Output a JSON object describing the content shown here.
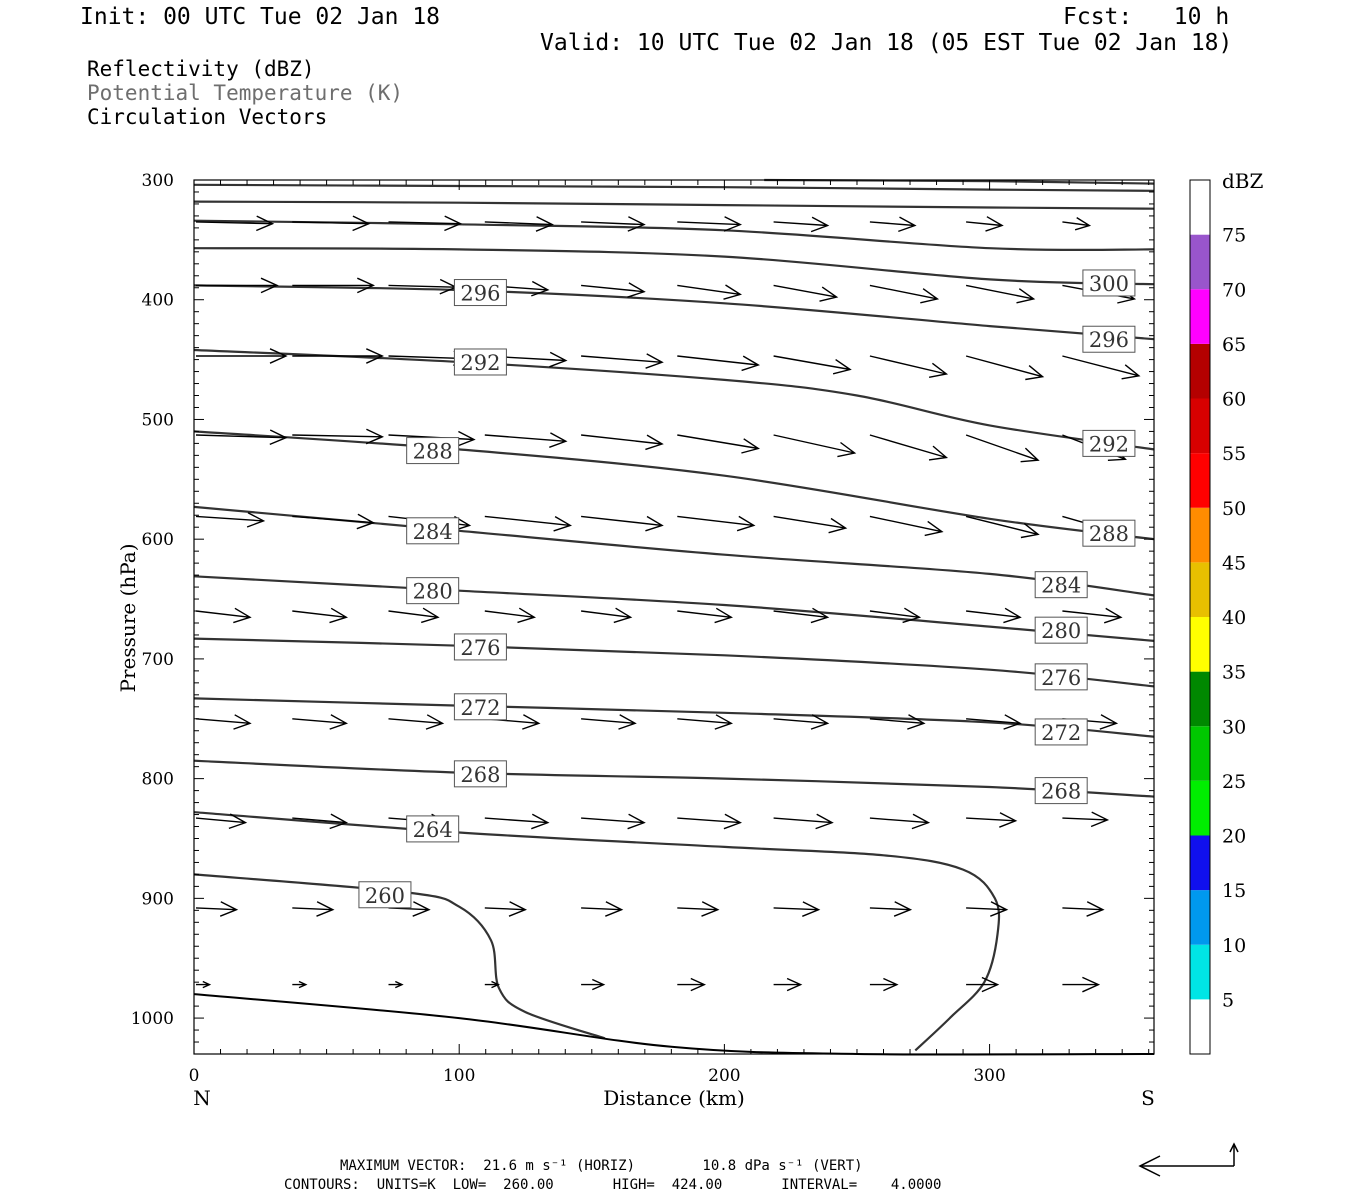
{
  "header": {
    "init": "Init: 00 UTC Tue 02 Jan 18",
    "fcst": "Fcst:   10 h",
    "valid": "Valid: 10 UTC Tue 02 Jan 18 (05 EST Tue 02 Jan 18)"
  },
  "legend": {
    "line1": "Reflectivity (dBZ)",
    "line2": "Potential Temperature (K)",
    "line3": "Circulation Vectors",
    "line2_color": "#6e6e6e"
  },
  "footer": {
    "max_vector": "MAXIMUM VECTOR:  21.6 m s⁻¹ (HORIZ)        10.8 dPa s⁻¹ (VERT)",
    "contours": "CONTOURS:  UNITS=K  LOW=  260.00       HIGH=  424.00       INTERVAL=    4.0000"
  },
  "chart_data": {
    "type": "cross-section",
    "xlabel": "Distance (km)",
    "ylabel": "Pressure (hPa)",
    "x_end_left": "N",
    "x_end_right": "S",
    "xlim": [
      0,
      362
    ],
    "ylim": [
      1030,
      300
    ],
    "xticks": [
      0,
      100,
      200,
      300
    ],
    "yticks": [
      300,
      400,
      500,
      600,
      700,
      800,
      900,
      1000
    ],
    "colorbar": {
      "title": "dBZ",
      "bounds": [
        0,
        5,
        10,
        15,
        20,
        25,
        30,
        35,
        40,
        45,
        50,
        55,
        60,
        65,
        70,
        75,
        80
      ],
      "tick_labels": [
        "5",
        "10",
        "15",
        "20",
        "25",
        "30",
        "35",
        "40",
        "45",
        "50",
        "55",
        "60",
        "65",
        "70",
        "75"
      ],
      "colors": [
        "#ffffff",
        "#00e5e5",
        "#0099ee",
        "#1010ee",
        "#00ee00",
        "#00c800",
        "#008800",
        "#ffff00",
        "#e8c000",
        "#ff8c00",
        "#ff0000",
        "#d80000",
        "#b40000",
        "#ff00ff",
        "#9955cc",
        "#ffffff"
      ]
    },
    "theta_contours": [
      {
        "value": 260,
        "label": "260",
        "points": [
          [
            0,
            880
          ],
          [
            80,
            895
          ],
          [
            100,
            907
          ],
          [
            112,
            935
          ],
          [
            115,
            975
          ],
          [
            125,
            995
          ],
          [
            155,
            1017
          ]
        ],
        "label_points": [
          [
            72,
            897
          ]
        ]
      },
      {
        "value": 264,
        "label": "264",
        "points": [
          [
            0,
            828
          ],
          [
            100,
            845
          ],
          [
            200,
            857
          ],
          [
            260,
            864
          ],
          [
            290,
            876
          ],
          [
            302,
            900
          ],
          [
            303,
            930
          ],
          [
            298,
            970
          ],
          [
            285,
            1000
          ],
          [
            272,
            1027
          ]
        ],
        "label_points": [
          [
            90,
            842
          ]
        ]
      },
      {
        "value": 268,
        "label": "268",
        "points": [
          [
            0,
            785
          ],
          [
            100,
            795
          ],
          [
            200,
            800
          ],
          [
            300,
            807
          ],
          [
            362,
            815
          ]
        ],
        "label_points": [
          [
            108,
            796
          ],
          [
            327,
            810
          ]
        ]
      },
      {
        "value": 272,
        "label": "272",
        "points": [
          [
            0,
            733
          ],
          [
            100,
            739
          ],
          [
            200,
            745
          ],
          [
            300,
            753
          ],
          [
            362,
            765
          ]
        ],
        "label_points": [
          [
            108,
            740
          ],
          [
            327,
            761
          ]
        ]
      },
      {
        "value": 276,
        "label": "276",
        "points": [
          [
            0,
            683
          ],
          [
            100,
            689
          ],
          [
            200,
            697
          ],
          [
            300,
            709
          ],
          [
            362,
            723
          ]
        ],
        "label_points": [
          [
            108,
            690
          ],
          [
            327,
            715
          ]
        ]
      },
      {
        "value": 280,
        "label": "280",
        "points": [
          [
            0,
            631
          ],
          [
            100,
            643
          ],
          [
            200,
            655
          ],
          [
            300,
            673
          ],
          [
            362,
            685
          ]
        ],
        "label_points": [
          [
            90,
            643
          ],
          [
            327,
            676
          ]
        ]
      },
      {
        "value": 284,
        "label": "284",
        "points": [
          [
            0,
            573
          ],
          [
            100,
            593
          ],
          [
            200,
            613
          ],
          [
            300,
            629
          ],
          [
            362,
            647
          ]
        ],
        "label_points": [
          [
            90,
            593
          ],
          [
            327,
            638
          ]
        ]
      },
      {
        "value": 288,
        "label": "288",
        "points": [
          [
            0,
            510
          ],
          [
            100,
            525
          ],
          [
            200,
            547
          ],
          [
            300,
            583
          ],
          [
            362,
            600
          ]
        ],
        "label_points": [
          [
            90,
            526
          ],
          [
            345,
            595
          ]
        ]
      },
      {
        "value": 292,
        "label": "292",
        "points": [
          [
            0,
            442
          ],
          [
            100,
            452
          ],
          [
            200,
            467
          ],
          [
            250,
            480
          ],
          [
            300,
            505
          ],
          [
            362,
            525
          ]
        ],
        "label_points": [
          [
            108,
            452
          ],
          [
            345,
            520
          ]
        ]
      },
      {
        "value": 296,
        "label": "296",
        "points": [
          [
            0,
            388
          ],
          [
            100,
            392
          ],
          [
            200,
            403
          ],
          [
            300,
            422
          ],
          [
            362,
            433
          ]
        ],
        "label_points": [
          [
            108,
            394
          ],
          [
            345,
            433
          ]
        ]
      },
      {
        "value": 300,
        "label": "300",
        "points": [
          [
            0,
            357
          ],
          [
            100,
            358
          ],
          [
            200,
            364
          ],
          [
            300,
            383
          ],
          [
            362,
            387
          ]
        ],
        "label_points": [
          [
            345,
            386
          ]
        ]
      },
      {
        "value": 304,
        "label": "",
        "points": [
          [
            0,
            334
          ],
          [
            100,
            337
          ],
          [
            200,
            342
          ],
          [
            300,
            357
          ],
          [
            362,
            358
          ]
        ],
        "label_points": []
      },
      {
        "value": 308,
        "label": "",
        "points": [
          [
            0,
            318
          ],
          [
            100,
            319
          ],
          [
            200,
            321
          ],
          [
            300,
            323
          ],
          [
            362,
            324
          ]
        ],
        "label_points": []
      },
      {
        "value": 312,
        "label": "",
        "points": [
          [
            0,
            304
          ],
          [
            100,
            305
          ],
          [
            200,
            306
          ],
          [
            300,
            308
          ],
          [
            362,
            309
          ]
        ],
        "label_points": []
      },
      {
        "value": 316,
        "label": "",
        "points": [
          [
            215,
            300
          ],
          [
            300,
            301
          ],
          [
            362,
            303
          ]
        ],
        "label_points": []
      }
    ],
    "ground_line": [
      [
        0,
        980
      ],
      [
        100,
        1000
      ],
      [
        180,
        1024
      ],
      [
        250,
        1030
      ],
      [
        362,
        1030
      ]
    ],
    "vector_grid": {
      "x": [
        0,
        36.3,
        72.6,
        108.9,
        145.2,
        181.5,
        217.8,
        254.1,
        290.4,
        326.7
      ],
      "rows": [
        {
          "p": 335,
          "u": [
            0.85,
            0.85,
            0.8,
            0.75,
            0.7,
            0.7,
            0.6,
            0.5,
            0.4,
            0.3
          ],
          "w": [
            0.02,
            0.02,
            0.02,
            0.03,
            0.03,
            0.03,
            0.04,
            0.04,
            0.04,
            0.04
          ]
        },
        {
          "p": 388,
          "u": [
            0.9,
            0.9,
            0.75,
            0.7,
            0.7,
            0.7,
            0.7,
            0.75,
            0.75,
            0.8
          ],
          "w": [
            0,
            0,
            0.02,
            0.05,
            0.07,
            0.1,
            0.13,
            0.15,
            0.15,
            0.15
          ]
        },
        {
          "p": 447,
          "u": [
            1,
            1,
            0.9,
            0.9,
            0.9,
            0.9,
            0.85,
            0.85,
            0.85,
            0.85
          ],
          "w": [
            0,
            0,
            0.03,
            0.05,
            0.07,
            0.1,
            0.15,
            0.2,
            0.23,
            0.22
          ]
        },
        {
          "p": 513,
          "u": [
            1,
            1,
            0.95,
            0.9,
            0.9,
            0.9,
            0.9,
            0.85,
            0.8,
            0.7
          ],
          "w": [
            0.03,
            0.02,
            0.05,
            0.07,
            0.1,
            0.15,
            0.2,
            0.25,
            0.28,
            0.27
          ]
        },
        {
          "p": 581,
          "u": [
            0.75,
            0.9,
            0.9,
            0.95,
            0.9,
            0.85,
            0.8,
            0.8,
            0.8,
            0.8
          ],
          "w": [
            0.05,
            0.07,
            0.1,
            0.1,
            0.1,
            0.1,
            0.13,
            0.17,
            0.2,
            0.23
          ]
        },
        {
          "p": 660,
          "u": [
            0.6,
            0.6,
            0.55,
            0.55,
            0.55,
            0.6,
            0.6,
            0.55,
            0.6,
            0.65
          ],
          "w": [
            0.07,
            0.07,
            0.07,
            0.07,
            0.07,
            0.07,
            0.07,
            0.07,
            0.07,
            0.07
          ]
        },
        {
          "p": 750,
          "u": [
            0.6,
            0.6,
            0.6,
            0.6,
            0.6,
            0.6,
            0.6,
            0.6,
            0.6,
            0.6
          ],
          "w": [
            0.05,
            0.05,
            0.05,
            0.05,
            0.05,
            0.05,
            0.05,
            0.05,
            0.05,
            0.05
          ]
        },
        {
          "p": 833,
          "u": [
            0.55,
            0.6,
            0.65,
            0.7,
            0.7,
            0.7,
            0.65,
            0.65,
            0.55,
            0.5
          ],
          "w": [
            0.05,
            0.05,
            0.05,
            0.05,
            0.05,
            0.05,
            0.05,
            0.05,
            0.03,
            0.02
          ]
        },
        {
          "p": 908,
          "u": [
            0.45,
            0.45,
            0.45,
            0.45,
            0.45,
            0.45,
            0.5,
            0.45,
            0.45,
            0.45
          ],
          "w": [
            0.02,
            0.02,
            0.02,
            0.02,
            0.02,
            0.02,
            0.02,
            0.02,
            0.02,
            0.02
          ]
        },
        {
          "p": 972,
          "u": [
            0.15,
            0.15,
            0.15,
            0.15,
            0.25,
            0.3,
            0.3,
            0.3,
            0.35,
            0.4
          ],
          "w": [
            0,
            0,
            0,
            0,
            0,
            0,
            0,
            0,
            0,
            0
          ]
        }
      ],
      "arrow_color": "#000000"
    },
    "contour_color": "#333333"
  }
}
